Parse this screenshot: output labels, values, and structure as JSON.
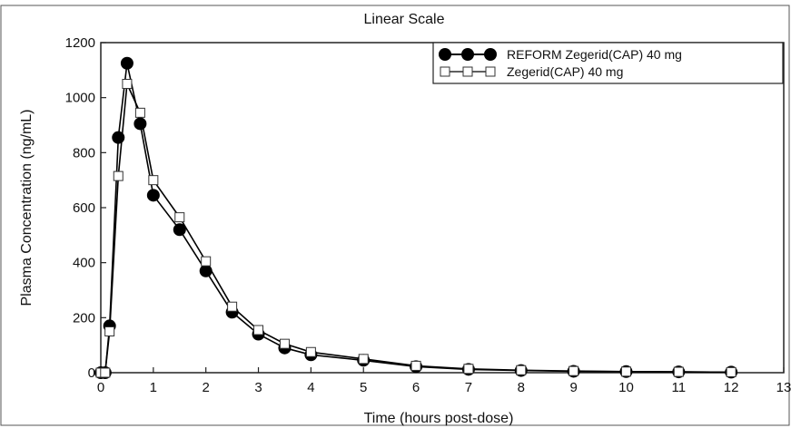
{
  "chart_data": {
    "type": "line",
    "title": "Linear Scale",
    "xlabel": "Time (hours post-dose)",
    "ylabel": "Plasma Concentration (ng/mL)",
    "xlim": [
      0,
      13
    ],
    "ylim": [
      0,
      1200
    ],
    "xticks": [
      0,
      1,
      2,
      3,
      4,
      5,
      6,
      7,
      8,
      9,
      10,
      11,
      12,
      13
    ],
    "yticks": [
      0,
      200,
      400,
      600,
      800,
      1000,
      1200
    ],
    "xtick_labels": [
      "0",
      "1",
      "2",
      "3",
      "4",
      "5",
      "6",
      "7",
      "8",
      "9",
      "10",
      "11",
      "12",
      "13"
    ],
    "ytick_labels": [
      "0",
      "200",
      "400",
      "600",
      "800",
      "1000",
      "1200"
    ],
    "grid": false,
    "legend_position": "top-right",
    "series": [
      {
        "name": "REFORM Zegerid(CAP) 40 mg",
        "marker": "filled-circle",
        "color": "#000000",
        "x": [
          0,
          0.083,
          0.167,
          0.333,
          0.5,
          0.75,
          1,
          1.5,
          2,
          2.5,
          3,
          3.5,
          4,
          5,
          6,
          7,
          8,
          9,
          10,
          11,
          12
        ],
        "y": [
          0,
          0,
          170,
          855,
          1125,
          905,
          645,
          520,
          370,
          220,
          140,
          90,
          65,
          45,
          22,
          12,
          8,
          5,
          4,
          3,
          2
        ]
      },
      {
        "name": "Zegerid(CAP) 40 mg",
        "marker": "open-square",
        "color": "#000000",
        "x": [
          0,
          0.083,
          0.167,
          0.333,
          0.5,
          0.75,
          1,
          1.5,
          2,
          2.5,
          3,
          3.5,
          4,
          5,
          6,
          7,
          8,
          9,
          10,
          11,
          12
        ],
        "y": [
          0,
          0,
          150,
          715,
          1050,
          945,
          700,
          565,
          405,
          240,
          155,
          105,
          75,
          50,
          25,
          14,
          9,
          6,
          4,
          3,
          2
        ]
      }
    ]
  }
}
